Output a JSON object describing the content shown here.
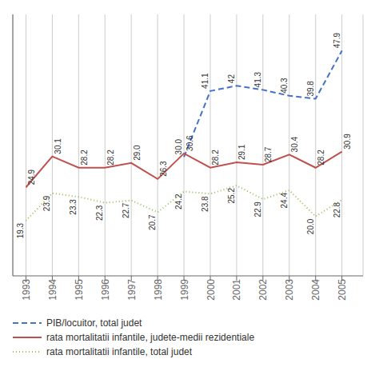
{
  "chart_data": {
    "type": "line",
    "x": [
      1993,
      1994,
      1995,
      1996,
      1997,
      1998,
      1999,
      2000,
      2001,
      2002,
      2003,
      2004,
      2005
    ],
    "xlim": [
      1992.5,
      2005.8
    ],
    "xticks": [
      1993,
      1994,
      1995,
      1996,
      1997,
      1998,
      1999,
      2000,
      2001,
      2002,
      2003,
      2004,
      2005
    ],
    "ylim": [
      10,
      54
    ],
    "tick_labels": "x",
    "grid": "x",
    "data_labels": true,
    "legend": "bottom",
    "series": [
      {
        "name": "PIB/locuitor, total judet",
        "color": "#4472C4",
        "line_style": "dashed",
        "values": [
          null,
          null,
          null,
          null,
          null,
          null,
          30.0,
          41.1,
          42.0,
          41.3,
          40.3,
          39.8,
          47.9
        ],
        "value_labels": [
          null,
          null,
          null,
          null,
          null,
          null,
          "30.0",
          "41.1",
          "42",
          "41.3",
          "40.3",
          "39.8",
          "47.9"
        ]
      },
      {
        "name": "rata mortalitatii infantile, judete-medii rezidentiale",
        "color": "#C0504D",
        "line_style": "solid",
        "values": [
          24.9,
          30.1,
          28.2,
          28.2,
          29.0,
          26.3,
          30.6,
          28.2,
          29.1,
          28.7,
          30.4,
          28.2,
          30.9
        ],
        "value_labels": [
          "24.9",
          "30.1",
          "28.2",
          "28.2",
          "29.0",
          "26.3",
          "30.6",
          "28.2",
          "29.1",
          "28.7",
          "30.4",
          "28.2",
          "30.9"
        ]
      },
      {
        "name": "rata mortalitatii infantile, total judet",
        "color": "#9BBB59",
        "line_style": "dotted",
        "values": [
          19.3,
          23.9,
          23.3,
          22.3,
          22.7,
          20.7,
          24.2,
          23.8,
          25.2,
          22.9,
          24.4,
          20.0,
          22.8
        ],
        "value_labels": [
          "19.3",
          "23.9",
          "23.3",
          "22.3",
          "22.7",
          "20.7",
          "24.2",
          "23.8",
          "25.2",
          "22.9",
          "24.4",
          "20.0",
          "22.8"
        ]
      }
    ]
  }
}
